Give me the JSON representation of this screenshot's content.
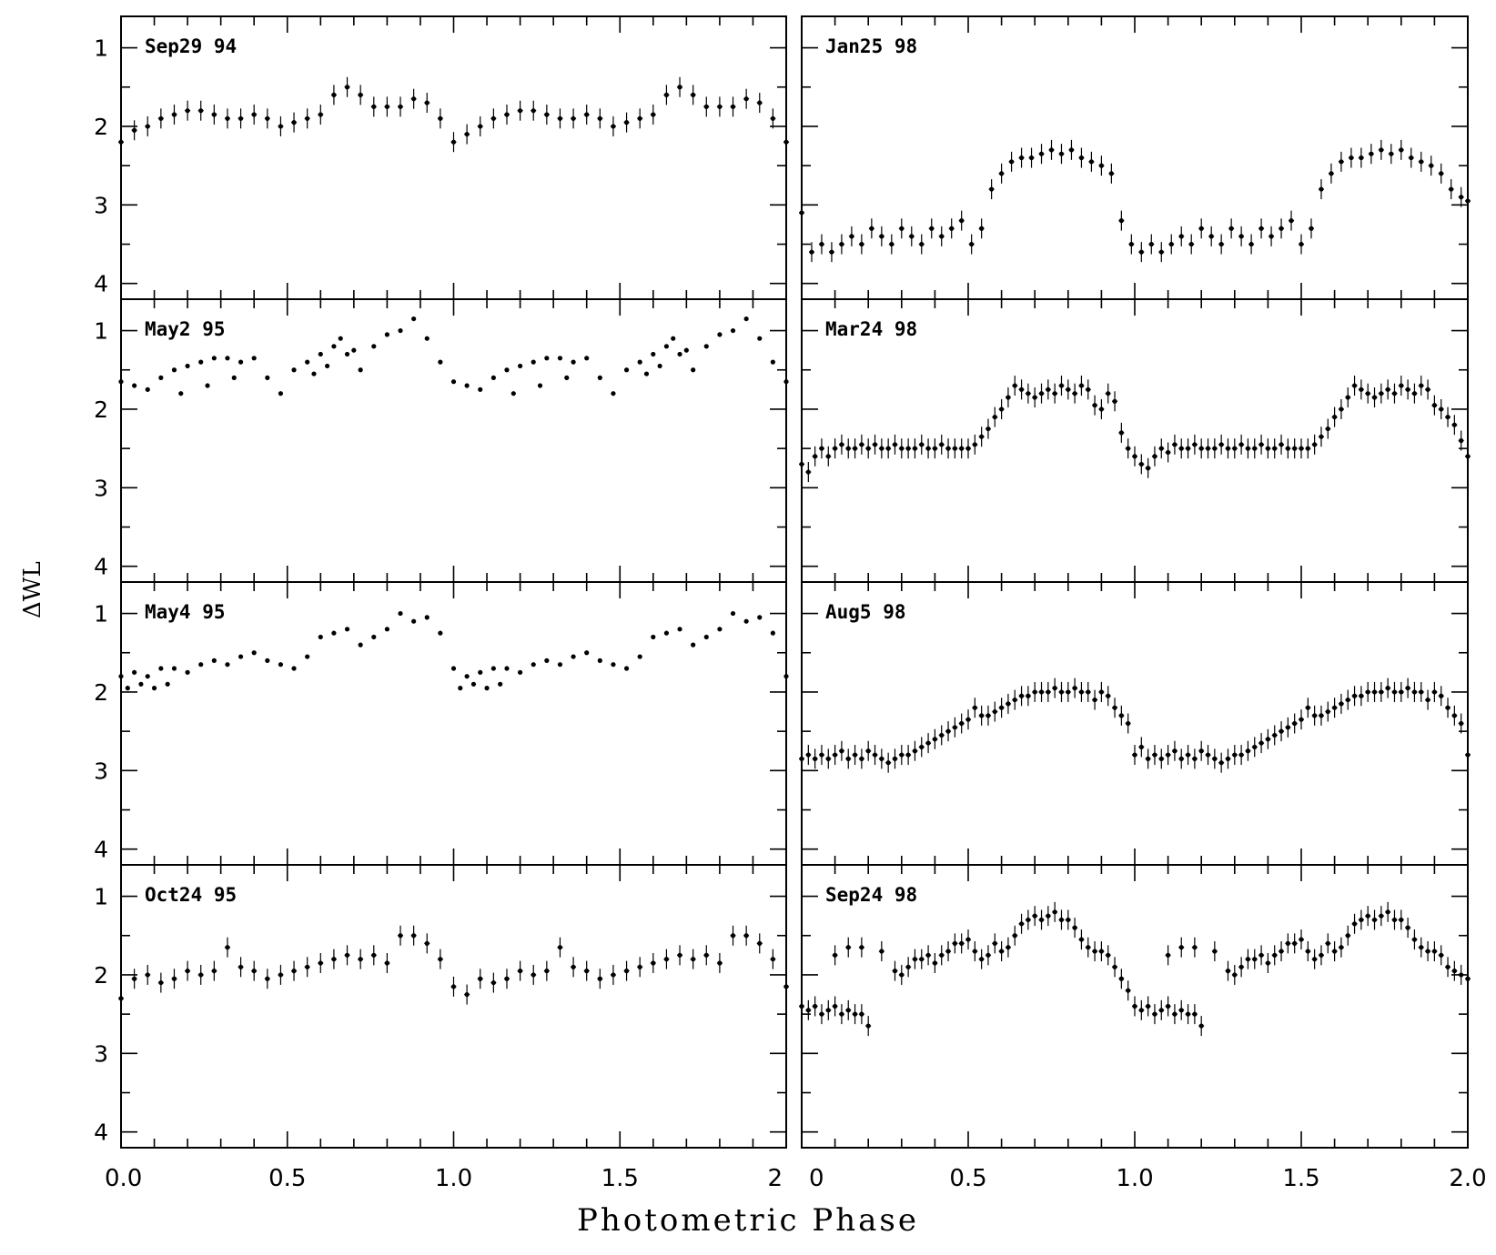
{
  "figure": {
    "xlabel": "Photometric Phase",
    "ylabel": "ΔWL"
  },
  "chart_data": [
    {
      "type": "scatter",
      "title": "Sep29 94",
      "column": "left",
      "row": 0,
      "xlim": [
        0,
        2
      ],
      "ylim": [
        4.2,
        0.6
      ],
      "xticks": [],
      "yticks": [
        "1",
        "2",
        "3",
        "4"
      ],
      "errorbars": true,
      "x": [
        0.0,
        0.04,
        0.08,
        0.12,
        0.16,
        0.2,
        0.24,
        0.28,
        0.32,
        0.36,
        0.4,
        0.44,
        0.48,
        0.52,
        0.56,
        0.6,
        0.64,
        0.68,
        0.72,
        0.76,
        0.8,
        0.84,
        0.88,
        0.92,
        0.96,
        1.0,
        1.04,
        1.08,
        1.12,
        1.16,
        1.2,
        1.24,
        1.28,
        1.32,
        1.36,
        1.4,
        1.44,
        1.48,
        1.52,
        1.56,
        1.6,
        1.64,
        1.68,
        1.72,
        1.76,
        1.8,
        1.84,
        1.88,
        1.92,
        1.96,
        2.0
      ],
      "y": [
        2.2,
        2.05,
        2.0,
        1.9,
        1.85,
        1.8,
        1.8,
        1.85,
        1.9,
        1.9,
        1.85,
        1.9,
        2.0,
        1.95,
        1.9,
        1.85,
        1.6,
        1.5,
        1.6,
        1.75,
        1.75,
        1.75,
        1.65,
        1.7,
        1.9,
        2.2,
        2.1,
        2.0,
        1.9,
        1.85,
        1.8,
        1.8,
        1.85,
        1.9,
        1.9,
        1.85,
        1.9,
        2.0,
        1.95,
        1.9,
        1.85,
        1.6,
        1.5,
        1.6,
        1.75,
        1.75,
        1.75,
        1.65,
        1.7,
        1.9,
        2.2
      ]
    },
    {
      "type": "scatter",
      "title": "May2 95",
      "column": "left",
      "row": 1,
      "xlim": [
        0,
        2
      ],
      "ylim": [
        4.2,
        0.6
      ],
      "xticks": [],
      "yticks": [
        "1",
        "2",
        "3",
        "4"
      ],
      "errorbars": false,
      "x": [
        0.0,
        0.04,
        0.08,
        0.12,
        0.16,
        0.2,
        0.24,
        0.28,
        0.32,
        0.36,
        0.4,
        0.44,
        0.48,
        0.52,
        0.56,
        0.6,
        0.64,
        0.68,
        0.72,
        0.76,
        0.8,
        0.84,
        0.88,
        0.92,
        0.96,
        1.0,
        1.04,
        1.08,
        1.12,
        1.16,
        1.2,
        1.24,
        1.28,
        1.32,
        1.36,
        1.4,
        1.44,
        1.48,
        1.52,
        1.56,
        1.6,
        1.64,
        1.68,
        1.72,
        1.76,
        1.8,
        1.84,
        1.88,
        1.92,
        1.96,
        2.0,
        0.18,
        0.26,
        0.34,
        0.58,
        0.62,
        0.66,
        0.7,
        1.18,
        1.26,
        1.34,
        1.58,
        1.62,
        1.66,
        1.7
      ],
      "y": [
        1.65,
        1.7,
        1.75,
        1.6,
        1.5,
        1.45,
        1.4,
        1.35,
        1.35,
        1.4,
        1.35,
        1.6,
        1.8,
        1.5,
        1.4,
        1.3,
        1.2,
        1.3,
        1.5,
        1.2,
        1.05,
        1.0,
        0.85,
        1.1,
        1.4,
        1.65,
        1.7,
        1.75,
        1.6,
        1.5,
        1.45,
        1.4,
        1.35,
        1.35,
        1.4,
        1.35,
        1.6,
        1.8,
        1.5,
        1.4,
        1.3,
        1.2,
        1.3,
        1.5,
        1.2,
        1.05,
        1.0,
        0.85,
        1.1,
        1.4,
        1.65,
        1.8,
        1.7,
        1.6,
        1.55,
        1.45,
        1.1,
        1.25,
        1.8,
        1.7,
        1.6,
        1.55,
        1.45,
        1.1,
        1.25
      ]
    },
    {
      "type": "scatter",
      "title": "May4 95",
      "column": "left",
      "row": 2,
      "xlim": [
        0,
        2
      ],
      "ylim": [
        4.2,
        0.6
      ],
      "xticks": [],
      "yticks": [
        "1",
        "2",
        "3",
        "4"
      ],
      "errorbars": false,
      "x": [
        0.0,
        0.04,
        0.08,
        0.12,
        0.16,
        0.2,
        0.24,
        0.28,
        0.32,
        0.36,
        0.4,
        0.44,
        0.48,
        0.52,
        0.56,
        0.6,
        0.64,
        0.68,
        0.72,
        0.76,
        0.8,
        0.84,
        0.88,
        0.92,
        0.96,
        1.0,
        1.04,
        1.08,
        1.12,
        1.16,
        1.2,
        1.24,
        1.28,
        1.32,
        1.36,
        1.4,
        1.44,
        1.48,
        1.52,
        1.56,
        1.6,
        1.64,
        1.68,
        1.72,
        1.76,
        1.8,
        1.84,
        1.88,
        1.92,
        1.96,
        2.0,
        0.02,
        0.06,
        0.1,
        0.14,
        1.02,
        1.06,
        1.1,
        1.14
      ],
      "y": [
        1.8,
        1.75,
        1.8,
        1.7,
        1.7,
        1.75,
        1.65,
        1.6,
        1.65,
        1.55,
        1.5,
        1.6,
        1.65,
        1.7,
        1.55,
        1.3,
        1.25,
        1.2,
        1.4,
        1.3,
        1.2,
        1.0,
        1.1,
        1.05,
        1.25,
        1.7,
        1.8,
        1.75,
        1.7,
        1.7,
        1.75,
        1.65,
        1.6,
        1.65,
        1.55,
        1.5,
        1.6,
        1.65,
        1.7,
        1.55,
        1.3,
        1.25,
        1.2,
        1.4,
        1.3,
        1.2,
        1.0,
        1.1,
        1.05,
        1.25,
        1.8,
        1.95,
        1.9,
        1.95,
        1.9,
        1.95,
        1.9,
        1.95,
        1.9
      ]
    },
    {
      "type": "scatter",
      "title": "Oct24 95",
      "column": "left",
      "row": 3,
      "xlim": [
        0,
        2
      ],
      "ylim": [
        4.2,
        0.6
      ],
      "xticks": [
        "0.0",
        "0.5",
        "1.0",
        "1.5",
        "2"
      ],
      "yticks": [
        "1",
        "2",
        "3",
        "4"
      ],
      "errorbars": true,
      "x": [
        0.0,
        0.04,
        0.08,
        0.12,
        0.16,
        0.2,
        0.24,
        0.28,
        0.32,
        0.36,
        0.4,
        0.44,
        0.48,
        0.52,
        0.56,
        0.6,
        0.64,
        0.68,
        0.72,
        0.76,
        0.8,
        0.84,
        0.88,
        0.92,
        0.96,
        1.0,
        1.04,
        1.08,
        1.12,
        1.16,
        1.2,
        1.24,
        1.28,
        1.32,
        1.36,
        1.4,
        1.44,
        1.48,
        1.52,
        1.56,
        1.6,
        1.64,
        1.68,
        1.72,
        1.76,
        1.8,
        1.84,
        1.88,
        1.92,
        1.96,
        2.0
      ],
      "y": [
        2.3,
        2.05,
        2.0,
        2.1,
        2.05,
        1.95,
        2.0,
        1.95,
        1.65,
        1.9,
        1.95,
        2.05,
        2.0,
        1.95,
        1.9,
        1.85,
        1.8,
        1.75,
        1.8,
        1.75,
        1.85,
        1.5,
        1.5,
        1.6,
        1.8,
        2.15,
        2.25,
        2.05,
        2.1,
        2.05,
        1.95,
        2.0,
        1.95,
        1.65,
        1.9,
        1.95,
        2.05,
        2.0,
        1.95,
        1.9,
        1.85,
        1.8,
        1.75,
        1.8,
        1.75,
        1.85,
        1.5,
        1.5,
        1.6,
        1.8,
        2.15
      ]
    },
    {
      "type": "scatter",
      "title": "Jan25 98",
      "column": "right",
      "row": 0,
      "xlim": [
        0,
        2
      ],
      "ylim": [
        4.2,
        0.6
      ],
      "xticks": [],
      "yticks": [],
      "errorbars": true,
      "x": [
        0.0,
        0.03,
        0.06,
        0.09,
        0.12,
        0.15,
        0.18,
        0.21,
        0.24,
        0.27,
        0.3,
        0.33,
        0.36,
        0.39,
        0.42,
        0.45,
        0.48,
        0.51,
        0.54,
        0.57,
        0.6,
        0.63,
        0.66,
        0.69,
        0.72,
        0.75,
        0.78,
        0.81,
        0.84,
        0.87,
        0.9,
        0.93,
        0.96,
        0.99,
        1.02,
        1.05,
        1.08,
        1.11,
        1.14,
        1.17,
        1.2,
        1.23,
        1.26,
        1.29,
        1.32,
        1.35,
        1.38,
        1.41,
        1.44,
        1.47,
        1.5,
        1.53,
        1.56,
        1.59,
        1.62,
        1.65,
        1.68,
        1.71,
        1.74,
        1.77,
        1.8,
        1.83,
        1.86,
        1.89,
        1.92,
        1.95,
        1.98,
        2.0
      ],
      "y": [
        3.1,
        3.6,
        3.5,
        3.6,
        3.5,
        3.4,
        3.5,
        3.3,
        3.4,
        3.5,
        3.3,
        3.4,
        3.5,
        3.3,
        3.4,
        3.3,
        3.2,
        3.5,
        3.3,
        2.8,
        2.6,
        2.45,
        2.4,
        2.4,
        2.35,
        2.3,
        2.35,
        2.3,
        2.4,
        2.45,
        2.5,
        2.6,
        3.2,
        3.5,
        3.6,
        3.5,
        3.6,
        3.5,
        3.4,
        3.5,
        3.3,
        3.4,
        3.5,
        3.3,
        3.4,
        3.5,
        3.3,
        3.4,
        3.3,
        3.2,
        3.5,
        3.3,
        2.8,
        2.6,
        2.45,
        2.4,
        2.4,
        2.35,
        2.3,
        2.35,
        2.3,
        2.4,
        2.45,
        2.5,
        2.6,
        2.8,
        2.9,
        2.95
      ]
    },
    {
      "type": "scatter",
      "title": "Mar24 98",
      "column": "right",
      "row": 1,
      "xlim": [
        0,
        2
      ],
      "ylim": [
        4.2,
        0.6
      ],
      "xticks": [],
      "yticks": [],
      "errorbars": true,
      "x": [
        0.0,
        0.02,
        0.04,
        0.06,
        0.08,
        0.1,
        0.12,
        0.14,
        0.16,
        0.18,
        0.2,
        0.22,
        0.24,
        0.26,
        0.28,
        0.3,
        0.32,
        0.34,
        0.36,
        0.38,
        0.4,
        0.42,
        0.44,
        0.46,
        0.48,
        0.5,
        0.52,
        0.54,
        0.56,
        0.58,
        0.6,
        0.62,
        0.64,
        0.66,
        0.68,
        0.7,
        0.72,
        0.74,
        0.76,
        0.78,
        0.8,
        0.82,
        0.84,
        0.86,
        0.88,
        0.9,
        0.92,
        0.94,
        0.96,
        0.98,
        1.0,
        1.02,
        1.04,
        1.06,
        1.08,
        1.1,
        1.12,
        1.14,
        1.16,
        1.18,
        1.2,
        1.22,
        1.24,
        1.26,
        1.28,
        1.3,
        1.32,
        1.34,
        1.36,
        1.38,
        1.4,
        1.42,
        1.44,
        1.46,
        1.48,
        1.5,
        1.52,
        1.54,
        1.56,
        1.58,
        1.6,
        1.62,
        1.64,
        1.66,
        1.68,
        1.7,
        1.72,
        1.74,
        1.76,
        1.78,
        1.8,
        1.82,
        1.84,
        1.86,
        1.88,
        1.9,
        1.92,
        1.94,
        1.96,
        1.98,
        2.0
      ],
      "y": [
        2.7,
        2.8,
        2.6,
        2.5,
        2.6,
        2.5,
        2.45,
        2.5,
        2.5,
        2.45,
        2.5,
        2.45,
        2.5,
        2.5,
        2.45,
        2.5,
        2.5,
        2.5,
        2.45,
        2.5,
        2.5,
        2.45,
        2.5,
        2.5,
        2.5,
        2.5,
        2.45,
        2.35,
        2.25,
        2.1,
        2.0,
        1.85,
        1.7,
        1.75,
        1.8,
        1.85,
        1.8,
        1.75,
        1.8,
        1.7,
        1.75,
        1.8,
        1.7,
        1.75,
        1.95,
        2.0,
        1.8,
        1.9,
        2.3,
        2.5,
        2.6,
        2.7,
        2.75,
        2.6,
        2.5,
        2.55,
        2.45,
        2.5,
        2.5,
        2.45,
        2.5,
        2.5,
        2.5,
        2.45,
        2.5,
        2.5,
        2.45,
        2.5,
        2.5,
        2.45,
        2.5,
        2.5,
        2.45,
        2.5,
        2.5,
        2.5,
        2.5,
        2.45,
        2.35,
        2.25,
        2.1,
        2.0,
        1.85,
        1.7,
        1.75,
        1.8,
        1.85,
        1.8,
        1.75,
        1.8,
        1.7,
        1.75,
        1.8,
        1.7,
        1.75,
        1.95,
        2.0,
        2.1,
        2.2,
        2.4,
        2.6
      ]
    },
    {
      "type": "scatter",
      "title": "Aug5 98",
      "column": "right",
      "row": 2,
      "xlim": [
        0,
        2
      ],
      "ylim": [
        4.2,
        0.6
      ],
      "xticks": [],
      "yticks": [],
      "errorbars": true,
      "x": [
        0.0,
        0.02,
        0.04,
        0.06,
        0.08,
        0.1,
        0.12,
        0.14,
        0.16,
        0.18,
        0.2,
        0.22,
        0.24,
        0.26,
        0.28,
        0.3,
        0.32,
        0.34,
        0.36,
        0.38,
        0.4,
        0.42,
        0.44,
        0.46,
        0.48,
        0.5,
        0.52,
        0.54,
        0.56,
        0.58,
        0.6,
        0.62,
        0.64,
        0.66,
        0.68,
        0.7,
        0.72,
        0.74,
        0.76,
        0.78,
        0.8,
        0.82,
        0.84,
        0.86,
        0.88,
        0.9,
        0.92,
        0.94,
        0.96,
        0.98,
        1.0,
        1.02,
        1.04,
        1.06,
        1.08,
        1.1,
        1.12,
        1.14,
        1.16,
        1.18,
        1.2,
        1.22,
        1.24,
        1.26,
        1.28,
        1.3,
        1.32,
        1.34,
        1.36,
        1.38,
        1.4,
        1.42,
        1.44,
        1.46,
        1.48,
        1.5,
        1.52,
        1.54,
        1.56,
        1.58,
        1.6,
        1.62,
        1.64,
        1.66,
        1.68,
        1.7,
        1.72,
        1.74,
        1.76,
        1.78,
        1.8,
        1.82,
        1.84,
        1.86,
        1.88,
        1.9,
        1.92,
        1.94,
        1.96,
        1.98,
        2.0
      ],
      "y": [
        2.85,
        2.8,
        2.85,
        2.8,
        2.85,
        2.8,
        2.75,
        2.85,
        2.8,
        2.85,
        2.75,
        2.8,
        2.85,
        2.9,
        2.85,
        2.8,
        2.8,
        2.75,
        2.7,
        2.65,
        2.6,
        2.55,
        2.5,
        2.45,
        2.4,
        2.35,
        2.2,
        2.3,
        2.3,
        2.25,
        2.2,
        2.15,
        2.1,
        2.05,
        2.05,
        2.0,
        2.0,
        2.0,
        1.95,
        2.0,
        2.0,
        1.95,
        2.0,
        2.0,
        2.1,
        2.0,
        2.05,
        2.2,
        2.3,
        2.4,
        2.8,
        2.7,
        2.85,
        2.8,
        2.85,
        2.8,
        2.75,
        2.85,
        2.8,
        2.85,
        2.75,
        2.8,
        2.85,
        2.9,
        2.85,
        2.8,
        2.8,
        2.75,
        2.7,
        2.65,
        2.6,
        2.55,
        2.5,
        2.45,
        2.4,
        2.35,
        2.2,
        2.3,
        2.3,
        2.25,
        2.2,
        2.15,
        2.1,
        2.05,
        2.05,
        2.0,
        2.0,
        2.0,
        1.95,
        2.0,
        2.0,
        1.95,
        2.0,
        2.0,
        2.1,
        2.0,
        2.05,
        2.2,
        2.3,
        2.4,
        2.8
      ]
    },
    {
      "type": "scatter",
      "title": "Sep24 98",
      "column": "right",
      "row": 3,
      "xlim": [
        0,
        2
      ],
      "ylim": [
        4.2,
        0.6
      ],
      "xticks": [
        "0",
        "0.5",
        "1.0",
        "1.5",
        "2.0"
      ],
      "yticks": [],
      "errorbars": true,
      "x": [
        0.0,
        0.02,
        0.04,
        0.06,
        0.08,
        0.1,
        0.12,
        0.14,
        0.16,
        0.18,
        0.2,
        0.1,
        0.14,
        0.18,
        0.24,
        0.28,
        0.3,
        0.32,
        0.34,
        0.36,
        0.38,
        0.4,
        0.42,
        0.44,
        0.46,
        0.48,
        0.5,
        0.52,
        0.54,
        0.56,
        0.58,
        0.6,
        0.62,
        0.64,
        0.66,
        0.68,
        0.7,
        0.72,
        0.74,
        0.76,
        0.78,
        0.8,
        0.82,
        0.84,
        0.86,
        0.88,
        0.9,
        0.92,
        0.94,
        0.96,
        0.98,
        1.0,
        1.02,
        1.04,
        1.06,
        1.08,
        1.1,
        1.12,
        1.14,
        1.16,
        1.18,
        1.2,
        1.1,
        1.14,
        1.18,
        1.24,
        1.28,
        1.3,
        1.32,
        1.34,
        1.36,
        1.38,
        1.4,
        1.42,
        1.44,
        1.46,
        1.48,
        1.5,
        1.52,
        1.54,
        1.56,
        1.58,
        1.6,
        1.62,
        1.64,
        1.66,
        1.68,
        1.7,
        1.72,
        1.74,
        1.76,
        1.78,
        1.8,
        1.82,
        1.84,
        1.86,
        1.88,
        1.9,
        1.92,
        1.94,
        1.96,
        1.98,
        2.0
      ],
      "y": [
        2.4,
        2.45,
        2.4,
        2.5,
        2.45,
        2.4,
        2.5,
        2.45,
        2.5,
        2.5,
        2.65,
        1.75,
        1.65,
        1.65,
        1.7,
        1.95,
        2.0,
        1.9,
        1.8,
        1.8,
        1.75,
        1.85,
        1.75,
        1.7,
        1.6,
        1.6,
        1.55,
        1.7,
        1.8,
        1.75,
        1.6,
        1.7,
        1.65,
        1.5,
        1.35,
        1.3,
        1.25,
        1.3,
        1.25,
        1.2,
        1.3,
        1.3,
        1.4,
        1.55,
        1.65,
        1.7,
        1.7,
        1.75,
        1.9,
        2.05,
        2.2,
        2.4,
        2.45,
        2.4,
        2.5,
        2.45,
        2.4,
        2.5,
        2.45,
        2.5,
        2.5,
        2.65,
        1.75,
        1.65,
        1.65,
        1.7,
        1.95,
        2.0,
        1.9,
        1.8,
        1.8,
        1.75,
        1.85,
        1.75,
        1.7,
        1.6,
        1.6,
        1.55,
        1.7,
        1.8,
        1.75,
        1.6,
        1.7,
        1.65,
        1.5,
        1.35,
        1.3,
        1.25,
        1.3,
        1.25,
        1.2,
        1.3,
        1.3,
        1.4,
        1.55,
        1.65,
        1.7,
        1.7,
        1.75,
        1.9,
        1.95,
        2.0,
        2.05
      ]
    }
  ]
}
